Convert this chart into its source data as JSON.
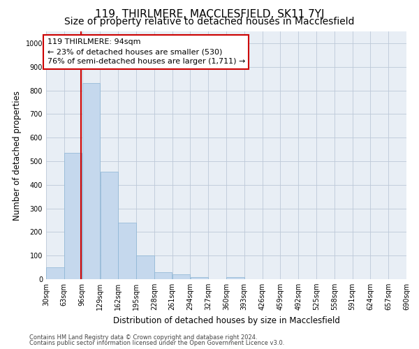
{
  "title": "119, THIRLMERE, MACCLESFIELD, SK11 7YJ",
  "subtitle": "Size of property relative to detached houses in Macclesfield",
  "xlabel": "Distribution of detached houses by size in Macclesfield",
  "ylabel": "Number of detached properties",
  "footer_line1": "Contains HM Land Registry data © Crown copyright and database right 2024.",
  "footer_line2": "Contains public sector information licensed under the Open Government Licence v3.0.",
  "bar_color": "#c5d8ed",
  "bar_edge_color": "#8ab4d4",
  "grid_color": "#bcc8d8",
  "background_color": "#e8eef5",
  "annotation_box_color": "#cc0000",
  "vline_color": "#cc0000",
  "property_size_bin": 2,
  "bin_edges": [
    30,
    63,
    96,
    129,
    162,
    195,
    228,
    261,
    294,
    327,
    360,
    393,
    426,
    459,
    492,
    525,
    558,
    591,
    624,
    657,
    690
  ],
  "bar_heights": [
    50,
    535,
    830,
    455,
    240,
    100,
    30,
    20,
    10,
    0,
    10,
    0,
    0,
    0,
    0,
    0,
    0,
    0,
    0,
    0
  ],
  "annotation_line1": "119 THIRLMERE: 94sqm",
  "annotation_line2": "← 23% of detached houses are smaller (530)",
  "annotation_line3": "76% of semi-detached houses are larger (1,711) →",
  "vline_x": 94,
  "ylim": [
    0,
    1050
  ],
  "yticks": [
    0,
    100,
    200,
    300,
    400,
    500,
    600,
    700,
    800,
    900,
    1000
  ],
  "title_fontsize": 11,
  "subtitle_fontsize": 10,
  "tick_label_fontsize": 7,
  "ylabel_fontsize": 8.5,
  "xlabel_fontsize": 8.5,
  "annotation_fontsize": 8,
  "footer_fontsize": 6
}
